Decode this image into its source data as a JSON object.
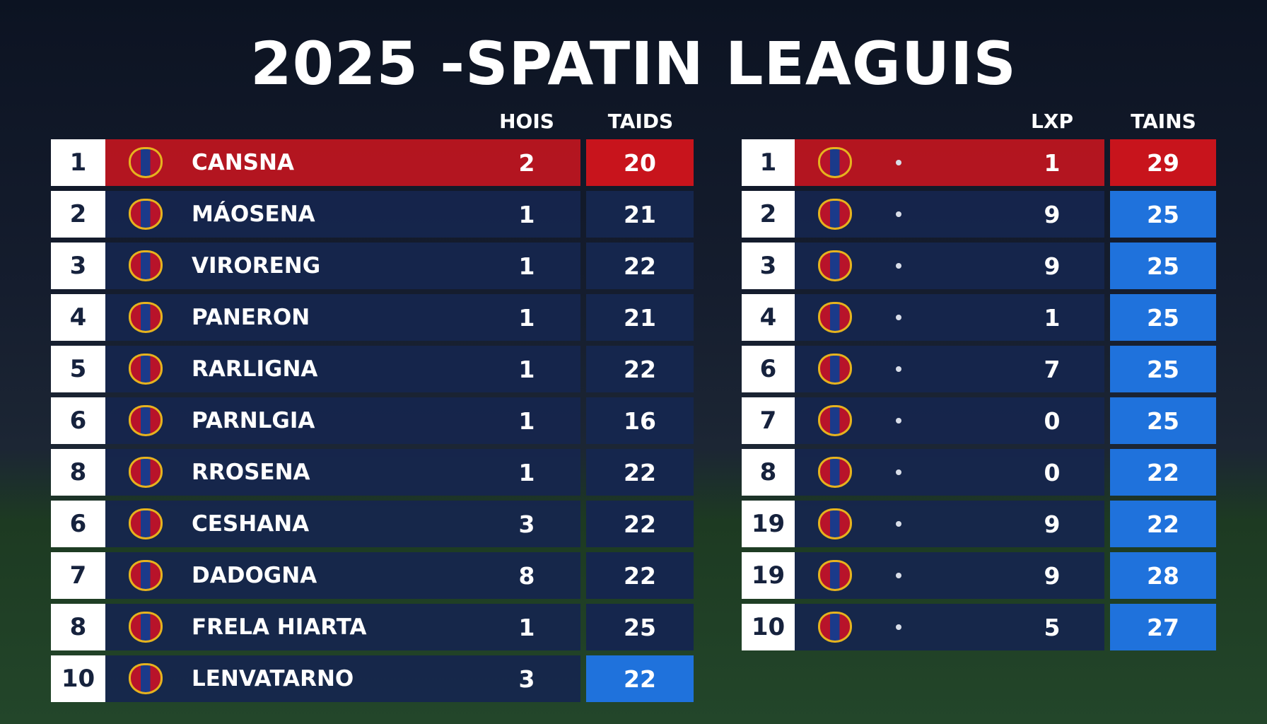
{
  "title": "2025 -SPATIN LEAGUIS",
  "left_table": {
    "headers": [
      "HOIS",
      "TAIDS"
    ],
    "rows": [
      {
        "rank": "1",
        "team": "CANSNA",
        "hois": "2",
        "taids": "20",
        "band": "#c0161f",
        "box": "#c8141c"
      },
      {
        "rank": "2",
        "team": "MÁOSENA",
        "hois": "1",
        "taids": "21",
        "band": "#15264d",
        "box": "#15264d"
      },
      {
        "rank": "3",
        "team": "VIRORENG",
        "hois": "1",
        "taids": "22",
        "band": "#15264d",
        "box": "#15264d"
      },
      {
        "rank": "4",
        "team": "PANERON",
        "hois": "1",
        "taids": "21",
        "band": "#15264d",
        "box": "#15264d"
      },
      {
        "rank": "5",
        "team": "RARLIGNA",
        "hois": "1",
        "taids": "22",
        "band": "#15264d",
        "box": "#15264d"
      },
      {
        "rank": "6",
        "team": "PARNLGIA",
        "hois": "1",
        "taids": "16",
        "band": "#15264d",
        "box": "#15264d"
      },
      {
        "rank": "8",
        "team": "RROSENA",
        "hois": "1",
        "taids": "22",
        "band": "#15264d",
        "box": "#15264d"
      },
      {
        "rank": "6",
        "team": "CESHANA",
        "hois": "3",
        "taids": "22",
        "band": "#15264d",
        "box": "#15264d"
      },
      {
        "rank": "7",
        "team": "DADOGNA",
        "hois": "8",
        "taids": "22",
        "band": "#15264d",
        "box": "#15264d"
      },
      {
        "rank": "8",
        "team": "FRELA HIARTA",
        "hois": "1",
        "taids": "25",
        "band": "#15264d",
        "box": "#15264d"
      },
      {
        "rank": "10",
        "team": "LENVATARNO",
        "hois": "3",
        "taids": "22",
        "band": "#15264d",
        "box": "#1f72dc"
      }
    ]
  },
  "right_table": {
    "headers": [
      "LXP",
      "TAINS"
    ],
    "rows": [
      {
        "rank": "1",
        "lxp": "1",
        "tains": "29",
        "band": "#c0161f",
        "box": "#c8141c"
      },
      {
        "rank": "2",
        "lxp": "9",
        "tains": "25",
        "band": "#15264d",
        "box": "#1f72dc"
      },
      {
        "rank": "3",
        "lxp": "9",
        "tains": "25",
        "band": "#15264d",
        "box": "#1f72dc"
      },
      {
        "rank": "4",
        "lxp": "1",
        "tains": "25",
        "band": "#15264d",
        "box": "#1f72dc"
      },
      {
        "rank": "6",
        "lxp": "7",
        "tains": "25",
        "band": "#15264d",
        "box": "#1f72dc"
      },
      {
        "rank": "7",
        "lxp": "0",
        "tains": "25",
        "band": "#15264d",
        "box": "#1f72dc"
      },
      {
        "rank": "8",
        "lxp": "0",
        "tains": "22",
        "band": "#15264d",
        "box": "#1f72dc"
      },
      {
        "rank": "19",
        "lxp": "9",
        "tains": "22",
        "band": "#15264d",
        "box": "#1f72dc"
      },
      {
        "rank": "19",
        "lxp": "9",
        "tains": "28",
        "band": "#15264d",
        "box": "#1f72dc"
      },
      {
        "rank": "10",
        "lxp": "5",
        "tains": "27",
        "band": "#15264d",
        "box": "#1f72dc"
      }
    ]
  }
}
